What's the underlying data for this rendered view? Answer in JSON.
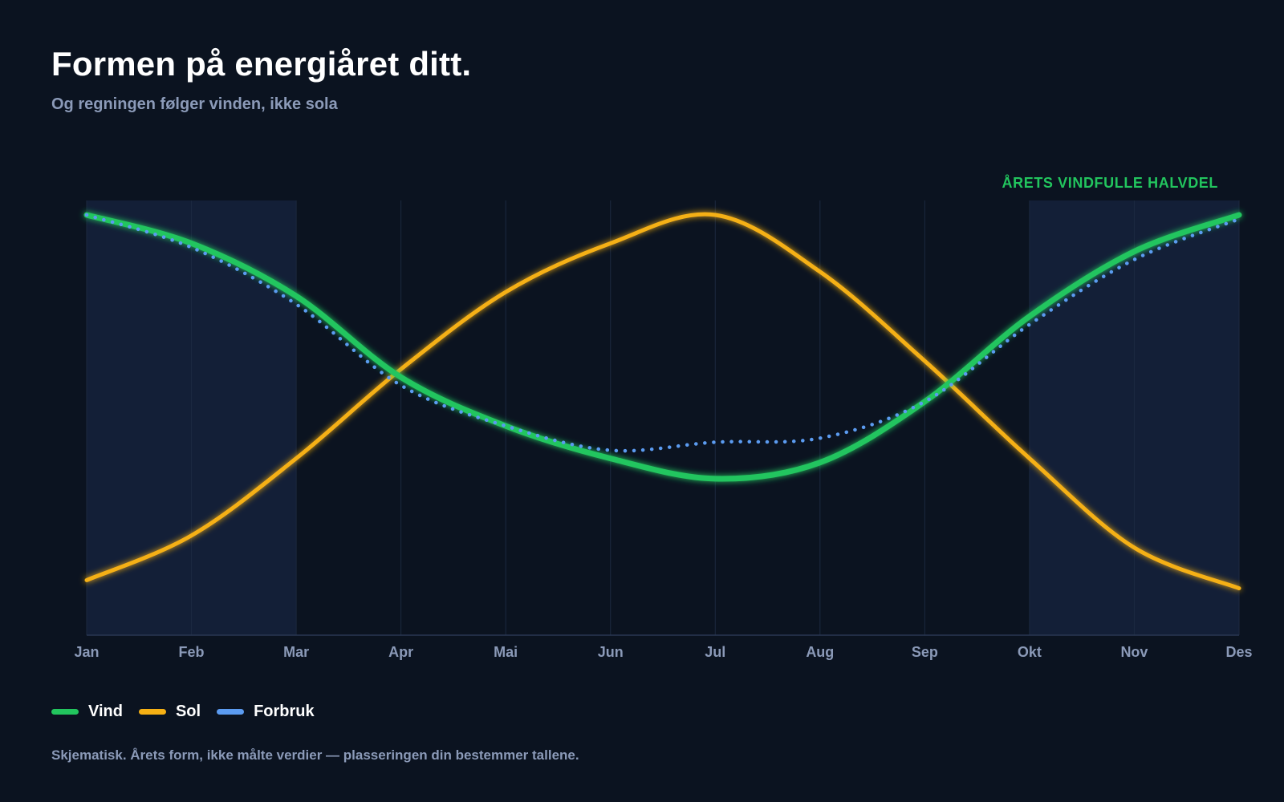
{
  "header": {
    "title": "Formen på energiåret ditt.",
    "subtitle": "Og regningen følger vinden, ikke sola"
  },
  "chart_data": {
    "type": "line",
    "title": "Formen på energiåret ditt.",
    "subtitle": "Og regningen følger vinden, ikke sola",
    "xlabel": "",
    "ylabel": "",
    "categories": [
      "Jan",
      "Feb",
      "Mar",
      "Apr",
      "Mai",
      "Jun",
      "Jul",
      "Aug",
      "Sep",
      "Okt",
      "Nov",
      "Des"
    ],
    "ylim": [
      0,
      100
    ],
    "y_ticks_shown": false,
    "grid": "vertical",
    "highlight_bands": [
      {
        "from": "Jan",
        "to": "Mar"
      },
      {
        "from": "Okt",
        "to": "Des"
      }
    ],
    "annotation": "ÅRETS VINDFULLE HALVDEL",
    "series": [
      {
        "name": "Vind",
        "color": "#22c55e",
        "style": "solid",
        "values": [
          100,
          93,
          80,
          60,
          48,
          40,
          35,
          39,
          54,
          75,
          91,
          100
        ]
      },
      {
        "name": "Sol",
        "color": "#f5b014",
        "style": "solid",
        "values": [
          10,
          21,
          40,
          62,
          81,
          93,
          100,
          86,
          64,
          40,
          18,
          8
        ]
      },
      {
        "name": "Forbruk",
        "color": "#5b9bf0",
        "style": "dotted",
        "values": [
          100,
          92,
          78,
          58,
          48,
          42,
          44,
          45,
          54,
          73,
          89,
          99
        ]
      }
    ],
    "legend": {
      "position": "bottom-left"
    }
  },
  "footnote": "Skjematisk. Årets form, ikke målte verdier — plasseringen din bestemmer tallene."
}
